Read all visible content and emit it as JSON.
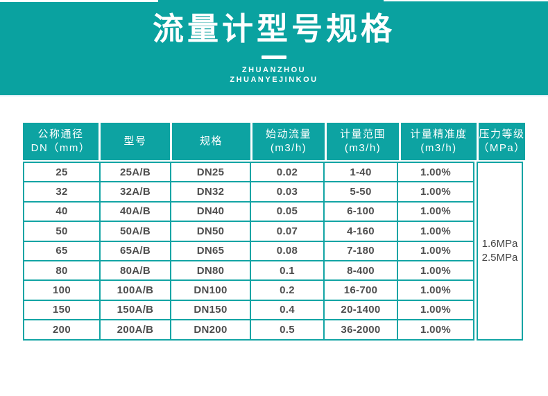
{
  "banner": {
    "title": "流量计型号规格",
    "subtitle_line1": "ZHUANZHOU",
    "subtitle_line2": "ZHUANYEJINKOU",
    "bg_color": "#0aa2a0",
    "edge_line_color": "#d9edf5"
  },
  "table": {
    "border_color": "#12a4a4",
    "header_bg_color": "#0da3a2",
    "body_text_color": "#4e4e4e",
    "headers": [
      {
        "l1": "公称通径",
        "l2": "DN（mm）"
      },
      {
        "l1": "型号"
      },
      {
        "l1": "规格"
      },
      {
        "l1": "始动流量",
        "l2": "(m3/h)"
      },
      {
        "l1": "计量范围",
        "l2": "(m3/h)"
      },
      {
        "l1": "计量精准度",
        "l2": "(m3/h)"
      },
      {
        "l1": "压力等级",
        "l2": "（MPa）"
      }
    ],
    "rows": [
      [
        "25",
        "25A/B",
        "DN25",
        "0.02",
        "1-40",
        "1.00%"
      ],
      [
        "32",
        "32A/B",
        "DN32",
        "0.03",
        "5-50",
        "1.00%"
      ],
      [
        "40",
        "40A/B",
        "DN40",
        "0.05",
        "6-100",
        "1.00%"
      ],
      [
        "50",
        "50A/B",
        "DN50",
        "0.07",
        "4-160",
        "1.00%"
      ],
      [
        "65",
        "65A/B",
        "DN65",
        "0.08",
        "7-180",
        "1.00%"
      ],
      [
        "80",
        "80A/B",
        "DN80",
        "0.1",
        "8-400",
        "1.00%"
      ],
      [
        "100",
        "100A/B",
        "DN100",
        "0.2",
        "16-700",
        "1.00%"
      ],
      [
        "150",
        "150A/B",
        "DN150",
        "0.4",
        "20-1400",
        "1.00%"
      ],
      [
        "200",
        "200A/B",
        "DN200",
        "0.5",
        "36-2000",
        "1.00%"
      ]
    ],
    "pressure": {
      "line1": "1.6MPa",
      "line2": "2.5MPa"
    }
  }
}
